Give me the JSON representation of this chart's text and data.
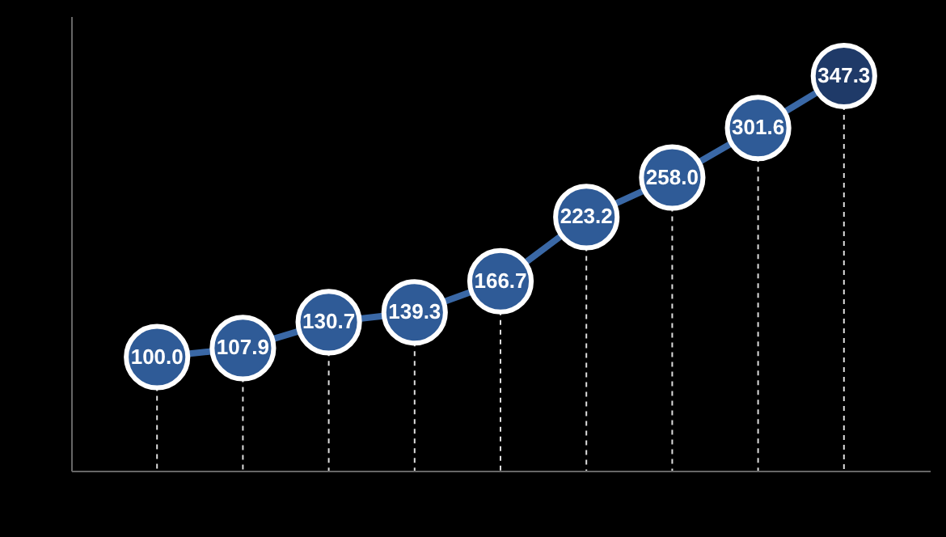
{
  "chart_data": {
    "type": "line",
    "categories": [
      null,
      null,
      null,
      null,
      null,
      null,
      null,
      null,
      null
    ],
    "series": [
      {
        "color": "#3a68a6",
        "values": [
          100.0,
          107.9,
          130.7,
          139.3,
          166.7,
          223.2,
          258.0,
          301.6,
          347.3
        ],
        "value_labels": [
          "100.0",
          "107.9",
          "130.7",
          "139.3",
          "166.7",
          "223.2",
          "258.0",
          "301.6",
          "347.3"
        ],
        "colors": [
          "#2f5b97",
          "#2f5b97",
          "#2f5b97",
          "#2f5b97",
          "#2f5b97",
          "#2f5b97",
          "#2f5b97",
          "#2f5b97",
          "#1f3a68"
        ]
      }
    ],
    "ylim": [
      0,
      400
    ],
    "tick_labels": false,
    "grid": false,
    "marker": "circle",
    "line_style": "solid"
  }
}
